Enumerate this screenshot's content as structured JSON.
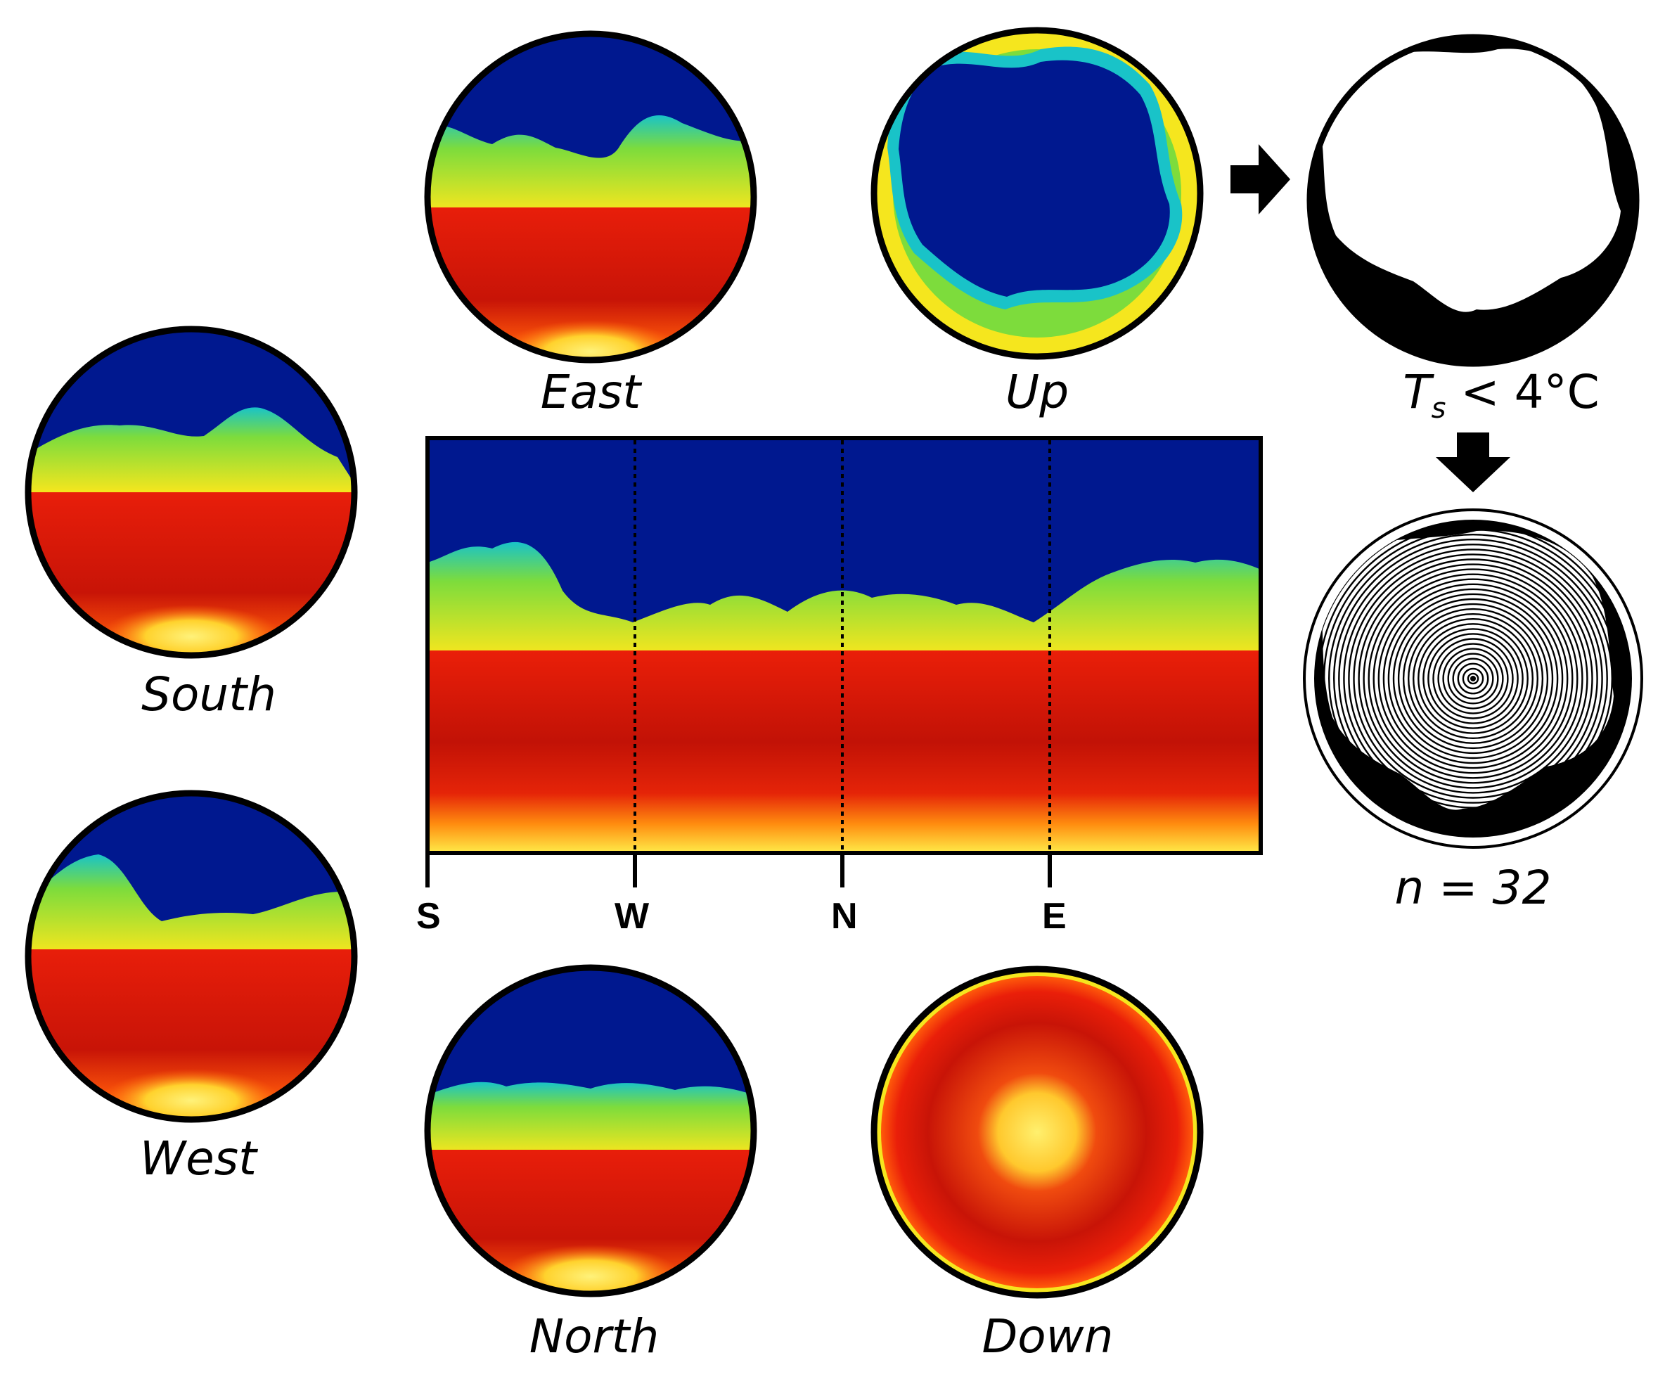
{
  "views": [
    {
      "id": "east",
      "label": "East"
    },
    {
      "id": "up",
      "label": "Up"
    },
    {
      "id": "south",
      "label": "South"
    },
    {
      "id": "west",
      "label": "West"
    },
    {
      "id": "north",
      "label": "North"
    },
    {
      "id": "down",
      "label": "Down"
    }
  ],
  "panorama": {
    "directions": [
      "S",
      "W",
      "N",
      "E"
    ]
  },
  "threshold": {
    "symbol": "T",
    "subscript": "s",
    "relation": "< 4°C"
  },
  "rings": {
    "label": "n = 32",
    "count": 32
  },
  "colors": {
    "sky": "#00188f",
    "cyan": "#19c3c8",
    "green": "#7ddc3c",
    "yellow": "#f5e61e",
    "orange": "#ff8c00",
    "ground": "#e81e0a",
    "ground_dark": "#b80f05",
    "hot": "#ffe64b"
  }
}
